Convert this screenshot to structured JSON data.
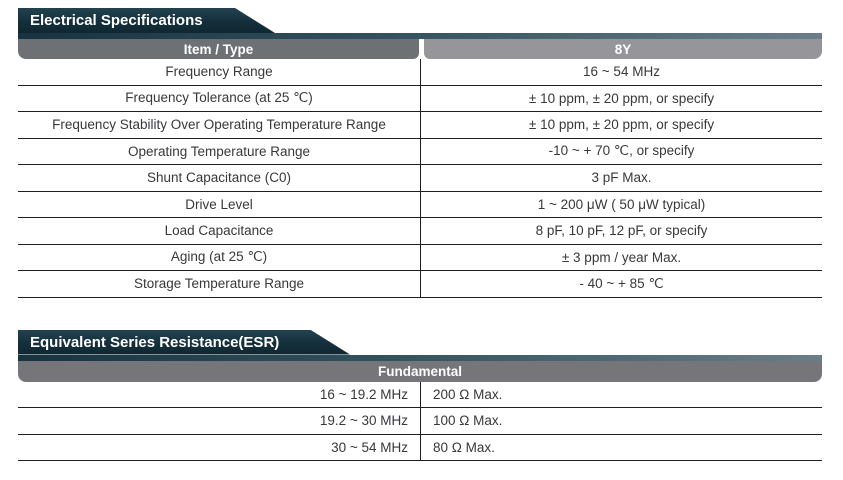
{
  "spec": {
    "title": "Electrical Specifications",
    "columns": [
      "Item / Type",
      "8Y"
    ],
    "rows": [
      {
        "item": "Frequency Range",
        "value": "16 ~ 54 MHz"
      },
      {
        "item": "Frequency Tolerance (at 25 ℃)",
        "value": "± 10 ppm, ± 20 ppm, or specify"
      },
      {
        "item": "Frequency Stability Over Operating Temperature Range",
        "value": "± 10 ppm, ± 20 ppm, or specify"
      },
      {
        "item": "Operating Temperature Range",
        "value": "-10 ~ + 70 ℃, or specify"
      },
      {
        "item": "Shunt Capacitance (C0)",
        "value": "3 pF Max."
      },
      {
        "item": "Drive Level",
        "value": "1 ~ 200 μW ( 50 μW typical)"
      },
      {
        "item": "Load Capacitance",
        "value": "8 pF, 10 pF, 12 pF, or specify"
      },
      {
        "item": "Aging (at 25 ℃)",
        "value": "± 3 ppm / year Max."
      },
      {
        "item": "Storage Temperature Range",
        "value": "- 40 ~ + 85 ℃"
      }
    ]
  },
  "esr": {
    "title": "Equivalent Series Resistance(ESR)",
    "header": "Fundamental",
    "rows": [
      {
        "range": "16 ~ 19.2 MHz",
        "value": "200 Ω Max."
      },
      {
        "range": "19.2 ~ 30 MHz",
        "value": "100 Ω Max."
      },
      {
        "range": "30 ~ 54 MHz",
        "value": "80 Ω Max."
      }
    ]
  },
  "colors": {
    "banner_dark": "#142f3b",
    "accent_line_left": "#18333f",
    "accent_line_right": "#6a7e8a",
    "header_item_type": "#6d7075",
    "header_8y": "#95959a",
    "header_fundamental": "#76767a",
    "row_text": "#38383b",
    "row_line": "#1f1f22"
  }
}
